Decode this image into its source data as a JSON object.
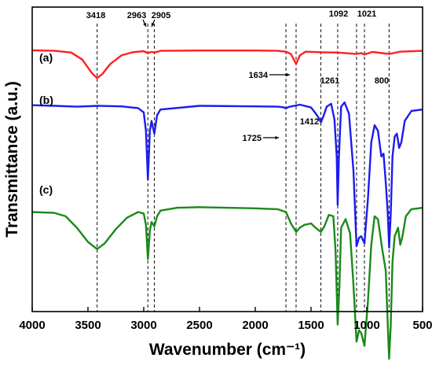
{
  "chart_data": {
    "type": "line",
    "xlabel": "Wavenumber (cm⁻¹)",
    "ylabel": "Transmittance (a.u.)",
    "xlim": [
      4000,
      500
    ],
    "x_reversed": true,
    "x_ticks": [
      "4000",
      "3500",
      "3000",
      "2500",
      "2000",
      "1500",
      "1000",
      "500"
    ],
    "y_ticks_shown": false,
    "grid": false,
    "series": [
      {
        "name": "(a)",
        "color": "#ff2020",
        "points": [
          [
            4000,
            92.3
          ],
          [
            3800,
            92.1
          ],
          [
            3650,
            91.5
          ],
          [
            3550,
            89.0
          ],
          [
            3470,
            84.5
          ],
          [
            3418,
            82.5
          ],
          [
            3370,
            84.0
          ],
          [
            3300,
            87.5
          ],
          [
            3200,
            90.5
          ],
          [
            3100,
            91.6
          ],
          [
            3000,
            92.0
          ],
          [
            2963,
            91.3
          ],
          [
            2930,
            91.7
          ],
          [
            2905,
            91.5
          ],
          [
            2850,
            92.1
          ],
          [
            2500,
            92.2
          ],
          [
            2000,
            92.2
          ],
          [
            1800,
            92.1
          ],
          [
            1725,
            91.8
          ],
          [
            1680,
            91.0
          ],
          [
            1634,
            87.5
          ],
          [
            1600,
            90.5
          ],
          [
            1550,
            91.8
          ],
          [
            1412,
            91.6
          ],
          [
            1261,
            91.5
          ],
          [
            1092,
            91.0
          ],
          [
            1050,
            91.3
          ],
          [
            1021,
            90.8
          ],
          [
            950,
            91.7
          ],
          [
            800,
            91.0
          ],
          [
            700,
            91.8
          ],
          [
            500,
            92.1
          ]
        ]
      },
      {
        "name": "(b)",
        "color": "#1c1cf0",
        "points": [
          [
            4000,
            73.0
          ],
          [
            3800,
            72.8
          ],
          [
            3600,
            72.5
          ],
          [
            3400,
            72.8
          ],
          [
            3200,
            72.6
          ],
          [
            3050,
            72.0
          ],
          [
            3000,
            70.5
          ],
          [
            2980,
            64.0
          ],
          [
            2963,
            47.0
          ],
          [
            2945,
            64.0
          ],
          [
            2930,
            67.5
          ],
          [
            2905,
            63.0
          ],
          [
            2880,
            69.5
          ],
          [
            2850,
            71.5
          ],
          [
            2500,
            72.8
          ],
          [
            2000,
            72.6
          ],
          [
            1800,
            72.5
          ],
          [
            1750,
            72.3
          ],
          [
            1725,
            71.9
          ],
          [
            1700,
            72.4
          ],
          [
            1600,
            73.2
          ],
          [
            1500,
            72.2
          ],
          [
            1460,
            70.2
          ],
          [
            1430,
            68.5
          ],
          [
            1412,
            67.0
          ],
          [
            1390,
            69.0
          ],
          [
            1360,
            72.5
          ],
          [
            1320,
            73.5
          ],
          [
            1290,
            68.0
          ],
          [
            1270,
            55.0
          ],
          [
            1261,
            38.0
          ],
          [
            1250,
            55.0
          ],
          [
            1230,
            72.5
          ],
          [
            1200,
            74.0
          ],
          [
            1160,
            70.0
          ],
          [
            1120,
            50.0
          ],
          [
            1092,
            23.5
          ],
          [
            1070,
            26.5
          ],
          [
            1050,
            27.0
          ],
          [
            1021,
            24.5
          ],
          [
            990,
            40.0
          ],
          [
            960,
            60.0
          ],
          [
            930,
            66.0
          ],
          [
            900,
            64.0
          ],
          [
            870,
            55.0
          ],
          [
            850,
            56.0
          ],
          [
            830,
            46.0
          ],
          [
            812,
            35.0
          ],
          [
            800,
            23.0
          ],
          [
            785,
            35.0
          ],
          [
            770,
            55.0
          ],
          [
            750,
            62.0
          ],
          [
            730,
            63.0
          ],
          [
            710,
            58.0
          ],
          [
            690,
            60.0
          ],
          [
            660,
            67.5
          ],
          [
            600,
            71.0
          ],
          [
            500,
            71.5
          ]
        ]
      },
      {
        "name": "(c)",
        "color": "#1a8a1a",
        "points": [
          [
            4000,
            35.5
          ],
          [
            3800,
            35.2
          ],
          [
            3700,
            34.0
          ],
          [
            3600,
            30.0
          ],
          [
            3500,
            25.0
          ],
          [
            3418,
            22.5
          ],
          [
            3350,
            24.5
          ],
          [
            3250,
            29.5
          ],
          [
            3150,
            33.5
          ],
          [
            3050,
            35.5
          ],
          [
            3000,
            35.0
          ],
          [
            2980,
            31.0
          ],
          [
            2963,
            19.0
          ],
          [
            2945,
            29.0
          ],
          [
            2930,
            32.0
          ],
          [
            2905,
            30.5
          ],
          [
            2880,
            34.0
          ],
          [
            2850,
            36.0
          ],
          [
            2700,
            37.0
          ],
          [
            2500,
            37.2
          ],
          [
            2000,
            36.8
          ],
          [
            1800,
            36.5
          ],
          [
            1725,
            35.5
          ],
          [
            1680,
            31.5
          ],
          [
            1634,
            28.5
          ],
          [
            1600,
            30.0
          ],
          [
            1560,
            31.0
          ],
          [
            1500,
            31.5
          ],
          [
            1460,
            30.0
          ],
          [
            1412,
            28.5
          ],
          [
            1380,
            30.5
          ],
          [
            1340,
            34.5
          ],
          [
            1300,
            34.0
          ],
          [
            1280,
            22.0
          ],
          [
            1261,
            -4.0
          ],
          [
            1245,
            10.0
          ],
          [
            1230,
            30.0
          ],
          [
            1190,
            33.0
          ],
          [
            1150,
            28.0
          ],
          [
            1120,
            10.0
          ],
          [
            1092,
            -10.0
          ],
          [
            1070,
            -6.0
          ],
          [
            1050,
            -7.0
          ],
          [
            1021,
            -11.5
          ],
          [
            990,
            4.0
          ],
          [
            960,
            24.0
          ],
          [
            930,
            34.0
          ],
          [
            900,
            33.0
          ],
          [
            860,
            22.0
          ],
          [
            830,
            15.0
          ],
          [
            812,
            -4.0
          ],
          [
            800,
            -16.0
          ],
          [
            785,
            -4.0
          ],
          [
            770,
            18.0
          ],
          [
            750,
            27.0
          ],
          [
            720,
            30.0
          ],
          [
            700,
            24.0
          ],
          [
            680,
            27.0
          ],
          [
            650,
            34.0
          ],
          [
            600,
            36.5
          ],
          [
            500,
            37.0
          ]
        ]
      }
    ],
    "reference_lines": [
      {
        "x": 3418,
        "label": "3418"
      },
      {
        "x": 2963,
        "label": "2963"
      },
      {
        "x": 2905,
        "label": "2905"
      },
      {
        "x": 1725,
        "label": "1725"
      },
      {
        "x": 1634,
        "label": "1634"
      },
      {
        "x": 1412,
        "label": "1412"
      },
      {
        "x": 1261,
        "label": "1261"
      },
      {
        "x": 1092,
        "label": "1092"
      },
      {
        "x": 1021,
        "label": "1021"
      },
      {
        "x": 800,
        "label": "800"
      }
    ],
    "curve_labels": [
      "(a)",
      "(b)",
      "(c)"
    ]
  }
}
